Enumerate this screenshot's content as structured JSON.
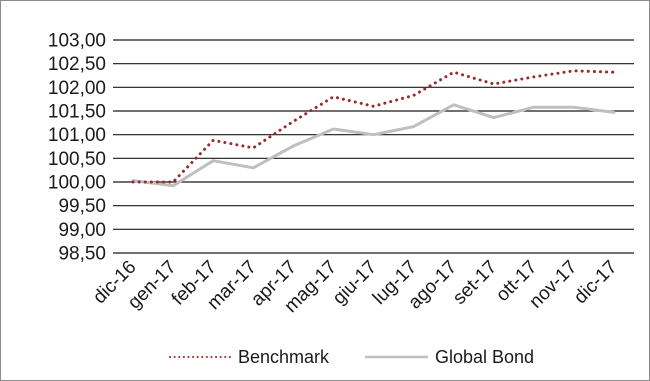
{
  "chart_data": {
    "type": "line",
    "title": "",
    "xlabel": "",
    "ylabel": "",
    "categories": [
      "dic-16",
      "gen-17",
      "feb-17",
      "mar-17",
      "apr-17",
      "mag-17",
      "giu-17",
      "lug-17",
      "ago-17",
      "set-17",
      "ott-17",
      "nov-17",
      "dic-17"
    ],
    "ylim": [
      98.5,
      103.0
    ],
    "yticks": [
      "98,50",
      "99,00",
      "99,50",
      "100,00",
      "100,50",
      "101,00",
      "101,50",
      "102,00",
      "102,50",
      "103,00"
    ],
    "grid": true,
    "legend_position": "bottom",
    "series": [
      {
        "name": "Benchmark",
        "color": "#9b2b2b",
        "style": "dotted",
        "values": [
          100.0,
          100.0,
          100.88,
          100.72,
          101.28,
          101.8,
          101.6,
          101.83,
          102.32,
          102.07,
          102.22,
          102.35,
          102.32
        ]
      },
      {
        "name": "Global Bond",
        "color": "#bfbfbf",
        "style": "solid",
        "values": [
          100.03,
          99.92,
          100.45,
          100.3,
          100.76,
          101.12,
          101.0,
          101.17,
          101.63,
          101.36,
          101.58,
          101.58,
          101.47
        ]
      }
    ]
  }
}
